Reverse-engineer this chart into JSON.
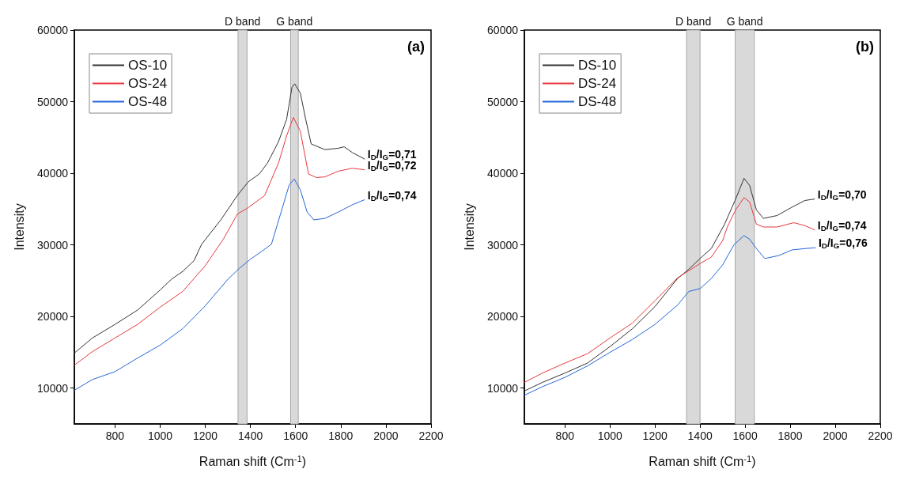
{
  "chart_data": [
    {
      "type": "line",
      "xlabel": "Raman shift (Cm$^{-1}$)",
      "ylabel": "Intensity",
      "xlim": [
        620,
        2200
      ],
      "ylim": [
        5000,
        60000
      ],
      "xticks": [
        800,
        1000,
        1200,
        1400,
        1600,
        1800,
        2000,
        2200
      ],
      "yticks": [
        10000,
        20000,
        30000,
        40000,
        50000,
        60000
      ],
      "grid": false,
      "legend": "top left",
      "marker": "none",
      "line_style": "solid",
      "series": [
        {
          "name": "OS-10",
          "color": "#333333",
          "x": [
            620,
            700,
            800,
            900,
            1000,
            1050,
            1100,
            1150,
            1184,
            1269,
            1342,
            1390,
            1439,
            1475,
            1524,
            1560,
            1584,
            1596,
            1621,
            1645,
            1669,
            1730,
            1790,
            1815,
            1851,
            1905
          ],
          "values": [
            14900,
            17000,
            18900,
            20900,
            23700,
            25200,
            26300,
            27800,
            30100,
            33500,
            36900,
            38800,
            39900,
            41400,
            44400,
            47500,
            52000,
            52500,
            51200,
            47500,
            44100,
            43300,
            43500,
            43700,
            42900,
            42000
          ]
        },
        {
          "name": "OS-24",
          "color": "#e8383d",
          "x": [
            620,
            700,
            800,
            900,
            1000,
            1100,
            1200,
            1280,
            1342,
            1390,
            1463,
            1524,
            1560,
            1590,
            1621,
            1657,
            1693,
            1730,
            1790,
            1851,
            1905
          ],
          "values": [
            13200,
            15100,
            17000,
            18900,
            21300,
            23500,
            27100,
            30800,
            34300,
            35200,
            36900,
            41400,
            45200,
            47800,
            45900,
            39900,
            39400,
            39500,
            40300,
            40700,
            40500
          ]
        },
        {
          "name": "OS-48",
          "color": "#2566d9",
          "x": [
            620,
            700,
            800,
            900,
            1000,
            1100,
            1200,
            1300,
            1350,
            1400,
            1450,
            1493,
            1536,
            1572,
            1594,
            1621,
            1651,
            1681,
            1730,
            1790,
            1851,
            1905
          ],
          "values": [
            9700,
            11200,
            12300,
            14200,
            16000,
            18300,
            21500,
            25200,
            26700,
            28000,
            29100,
            30100,
            34600,
            38400,
            39200,
            37700,
            34600,
            33500,
            33700,
            34600,
            35600,
            36300
          ]
        }
      ],
      "bands": [
        {
          "axis": "x",
          "from": 1345,
          "to": 1385,
          "label": "D band",
          "color": "#d9d9d9"
        },
        {
          "axis": "x",
          "from": 1578,
          "to": 1612,
          "label": "G band",
          "color": "#d9d9d9"
        }
      ],
      "annotations": [
        "(a)",
        "I$_{D}$/I$_{G}$=0,71",
        "I$_{D}$/I$_{G}$=0,72",
        "I$_{D}$/I$_{G}$=0,74"
      ]
    },
    {
      "type": "line",
      "xlabel": "Raman shift (Cm$^{-1}$)",
      "ylabel": "Intensity",
      "xlim": [
        620,
        2200
      ],
      "ylim": [
        5000,
        60000
      ],
      "xticks": [
        800,
        1000,
        1200,
        1400,
        1600,
        1800,
        2000,
        2200
      ],
      "yticks": [
        10000,
        20000,
        30000,
        40000,
        50000,
        60000
      ],
      "grid": false,
      "legend": "top left",
      "marker": "none",
      "line_style": "solid",
      "series": [
        {
          "name": "DS-10",
          "color": "#333333",
          "x": [
            620,
            700,
            800,
            900,
            1000,
            1100,
            1200,
            1300,
            1350,
            1400,
            1450,
            1509,
            1558,
            1595,
            1620,
            1650,
            1681,
            1742,
            1804,
            1865,
            1908
          ],
          "values": [
            9600,
            10800,
            12100,
            13500,
            15800,
            18300,
            21400,
            25300,
            26600,
            28100,
            29500,
            32900,
            36400,
            39300,
            38300,
            34900,
            33700,
            34100,
            35200,
            36200,
            36400
          ]
        },
        {
          "name": "DS-24",
          "color": "#e8383d",
          "x": [
            620,
            700,
            800,
            900,
            1000,
            1100,
            1200,
            1300,
            1350,
            1400,
            1450,
            1500,
            1521,
            1558,
            1595,
            1620,
            1650,
            1681,
            1742,
            1816,
            1865,
            1908
          ],
          "values": [
            10800,
            12100,
            13500,
            14800,
            17000,
            19100,
            22200,
            25400,
            26400,
            27400,
            28300,
            30600,
            32500,
            34900,
            36600,
            36000,
            32900,
            32500,
            32500,
            33100,
            32700,
            32100
          ]
        },
        {
          "name": "DS-48",
          "color": "#2566d9",
          "x": [
            620,
            700,
            800,
            900,
            1000,
            1100,
            1200,
            1300,
            1350,
            1400,
            1450,
            1500,
            1550,
            1595,
            1620,
            1650,
            1687,
            1748,
            1809,
            1870,
            1912
          ],
          "values": [
            9000,
            10200,
            11500,
            13100,
            15000,
            16800,
            18900,
            21600,
            23500,
            23900,
            25300,
            27200,
            30000,
            31300,
            30800,
            29500,
            28100,
            28500,
            29300,
            29500,
            29600
          ]
        }
      ],
      "bands": [
        {
          "axis": "x",
          "from": 1340,
          "to": 1400,
          "label": "D band",
          "color": "#d9d9d9"
        },
        {
          "axis": "x",
          "from": 1556,
          "to": 1641,
          "label": "G band",
          "color": "#d9d9d9"
        }
      ],
      "annotations": [
        "(b)",
        "I$_{D}$/I$_{G}$=0,70",
        "I$_{D}$/I$_{G}$=0,74",
        "I$_{D}$/I$_{G}$=0,76"
      ]
    }
  ]
}
